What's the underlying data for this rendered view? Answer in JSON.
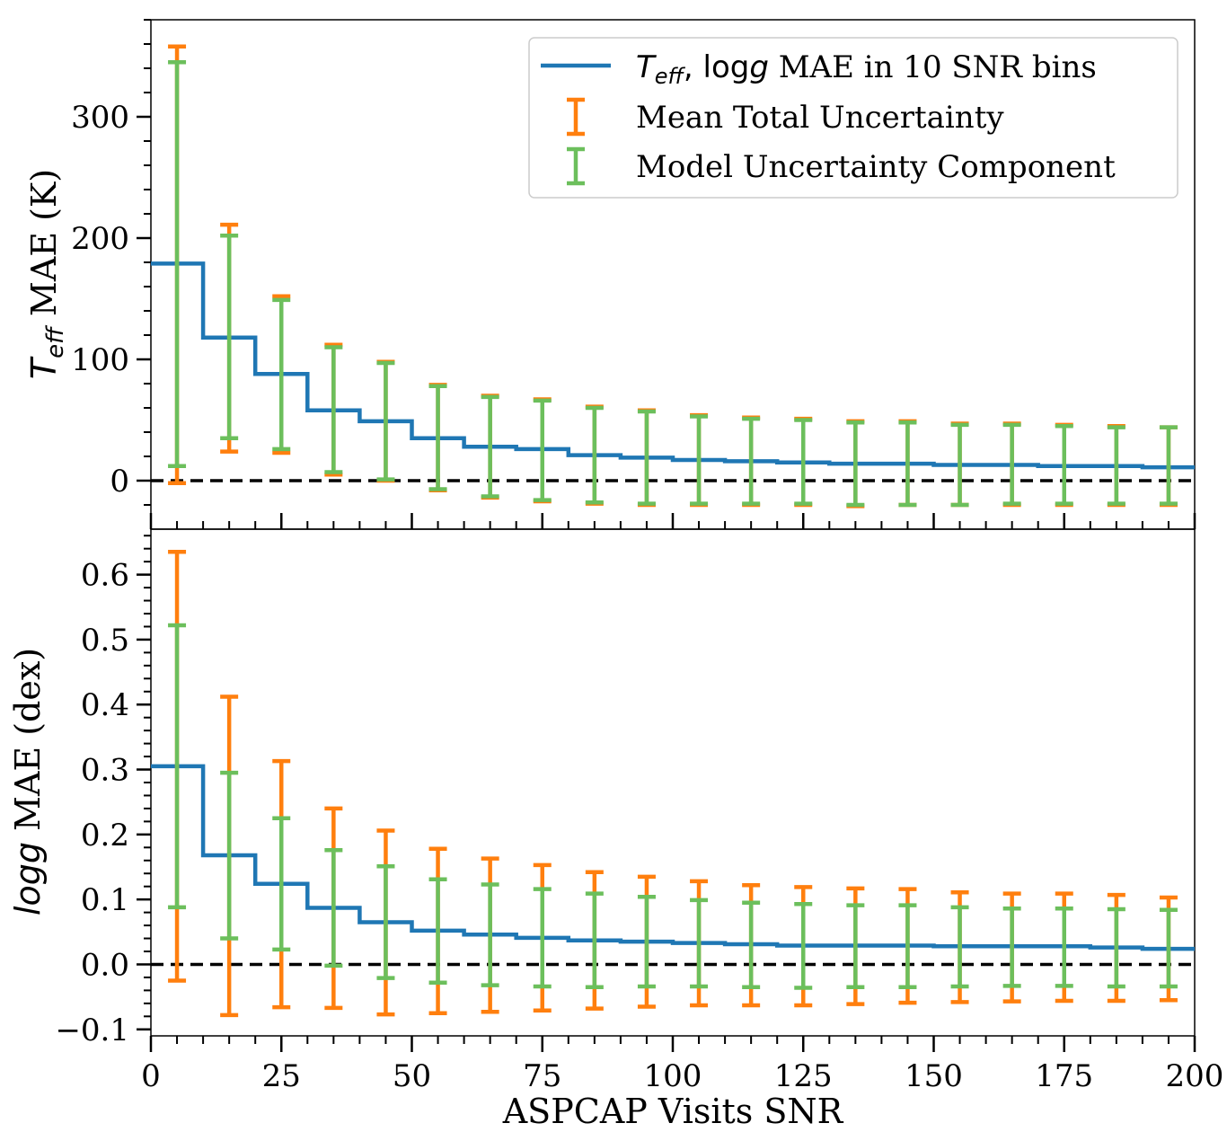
{
  "chart_data": [
    {
      "type": "line",
      "panel": "top",
      "ylabel": "T_eff MAE (K)",
      "ylabel_parts": [
        "T",
        "eff",
        " MAE (K)"
      ],
      "xlim": [
        0,
        200
      ],
      "ylim": [
        -40,
        380
      ],
      "yticks": [
        0,
        100,
        200,
        300
      ],
      "ytick_labels": [
        "0",
        "100",
        "200",
        "300"
      ],
      "reference_line_y": 0,
      "step": {
        "name": "T_eff, logg MAE in 10 SNR bins",
        "edges": [
          0,
          10,
          20,
          30,
          40,
          50,
          60,
          70,
          80,
          90,
          100,
          110,
          120,
          130,
          140,
          150,
          160,
          170,
          180,
          190,
          200
        ],
        "values": [
          179,
          118,
          88,
          58,
          49,
          35,
          28,
          26,
          21,
          19,
          17,
          16,
          15,
          14,
          14,
          13,
          13,
          12,
          12,
          11
        ]
      },
      "errorbars_x": [
        5,
        15,
        25,
        35,
        45,
        55,
        65,
        75,
        85,
        95,
        105,
        115,
        125,
        135,
        145,
        155,
        165,
        175,
        185,
        195
      ],
      "total_uncertainty": {
        "name": "Mean Total Uncertainty",
        "color": "#ff7f0e",
        "low": [
          -2,
          24,
          23,
          5,
          0,
          -8,
          -14,
          -17,
          -19,
          -20,
          -20,
          -20,
          -20,
          -21,
          -20,
          -20,
          -20,
          -20,
          -20,
          -20
        ],
        "high": [
          358,
          211,
          152,
          112,
          98,
          79,
          70,
          67,
          61,
          58,
          54,
          52,
          51,
          49,
          49,
          47,
          47,
          46,
          45,
          44
        ]
      },
      "model_uncertainty": {
        "name": "Model Uncertainty Component",
        "color": "#6cbf5c",
        "low": [
          12,
          35,
          26,
          7,
          1,
          -7,
          -13,
          -16,
          -18,
          -19,
          -19,
          -19,
          -19,
          -20,
          -20,
          -20,
          -19,
          -19,
          -19,
          -19
        ],
        "high": [
          345,
          202,
          149,
          110,
          97,
          78,
          69,
          66,
          60,
          57,
          53,
          51,
          50,
          48,
          48,
          46,
          46,
          45,
          44,
          44
        ]
      },
      "legend": {
        "placement": "top-right",
        "entries": [
          {
            "label_parts": [
              "T",
              "eff",
              ", ",
              "log",
              "g",
              " MAE in 10 SNR bins"
            ],
            "kind": "line",
            "color": "#1f77b4"
          },
          {
            "label": "Mean Total Uncertainty",
            "kind": "errorbar",
            "color": "#ff7f0e"
          },
          {
            "label": "Model Uncertainty Component",
            "kind": "errorbar",
            "color": "#6cbf5c"
          }
        ]
      }
    },
    {
      "type": "line",
      "panel": "bottom",
      "ylabel": "logg MAE (dex)",
      "ylabel_parts": [
        "logg",
        " MAE (dex)"
      ],
      "xlabel": "ASPCAP Visits SNR",
      "xlim": [
        0,
        200
      ],
      "ylim": [
        -0.11,
        0.67
      ],
      "xticks": [
        0,
        25,
        50,
        75,
        100,
        125,
        150,
        175,
        200
      ],
      "xtick_labels": [
        "0",
        "25",
        "50",
        "75",
        "100",
        "125",
        "150",
        "175",
        "200"
      ],
      "yticks": [
        -0.1,
        0.0,
        0.1,
        0.2,
        0.3,
        0.4,
        0.5,
        0.6
      ],
      "ytick_labels": [
        "−0.1",
        "0.0",
        "0.1",
        "0.2",
        "0.3",
        "0.4",
        "0.5",
        "0.6"
      ],
      "reference_line_y": 0,
      "step": {
        "edges": [
          0,
          10,
          20,
          30,
          40,
          50,
          60,
          70,
          80,
          90,
          100,
          110,
          120,
          130,
          140,
          150,
          160,
          170,
          180,
          190,
          200
        ],
        "values": [
          0.305,
          0.168,
          0.124,
          0.087,
          0.065,
          0.052,
          0.046,
          0.041,
          0.037,
          0.035,
          0.033,
          0.031,
          0.029,
          0.029,
          0.029,
          0.028,
          0.028,
          0.028,
          0.026,
          0.024
        ]
      },
      "errorbars_x": [
        5,
        15,
        25,
        35,
        45,
        55,
        65,
        75,
        85,
        95,
        105,
        115,
        125,
        135,
        145,
        155,
        165,
        175,
        185,
        195
      ],
      "total_uncertainty": {
        "color": "#ff7f0e",
        "low": [
          -0.025,
          -0.078,
          -0.066,
          -0.067,
          -0.077,
          -0.075,
          -0.073,
          -0.071,
          -0.068,
          -0.065,
          -0.063,
          -0.063,
          -0.063,
          -0.061,
          -0.059,
          -0.058,
          -0.057,
          -0.056,
          -0.056,
          -0.055
        ],
        "high": [
          0.635,
          0.412,
          0.313,
          0.24,
          0.206,
          0.178,
          0.163,
          0.153,
          0.142,
          0.135,
          0.128,
          0.122,
          0.119,
          0.117,
          0.116,
          0.111,
          0.109,
          0.109,
          0.107,
          0.103
        ]
      },
      "model_uncertainty": {
        "color": "#6cbf5c",
        "low": [
          0.088,
          0.04,
          0.023,
          -0.002,
          -0.021,
          -0.028,
          -0.032,
          -0.034,
          -0.035,
          -0.034,
          -0.034,
          -0.035,
          -0.036,
          -0.035,
          -0.035,
          -0.034,
          -0.033,
          -0.033,
          -0.034,
          -0.034
        ],
        "high": [
          0.522,
          0.295,
          0.225,
          0.176,
          0.151,
          0.131,
          0.123,
          0.116,
          0.109,
          0.104,
          0.099,
          0.095,
          0.093,
          0.091,
          0.091,
          0.088,
          0.086,
          0.086,
          0.085,
          0.084
        ]
      }
    }
  ]
}
